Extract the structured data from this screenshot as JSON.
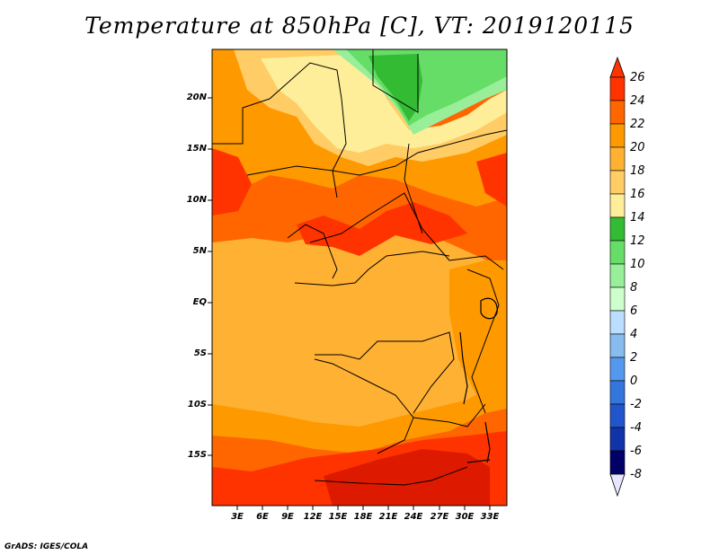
{
  "title": "Temperature at 850hPa [C], VT: 2019120115",
  "footer": "GrADS: IGES/COLA",
  "y_axis": {
    "labels": [
      "20N",
      "15N",
      "10N",
      "5N",
      "EQ",
      "5S",
      "10S",
      "15S"
    ]
  },
  "x_axis": {
    "labels": [
      "3E",
      "6E",
      "9E",
      "12E",
      "15E",
      "18E",
      "21E",
      "24E",
      "27E",
      "30E",
      "33E"
    ]
  },
  "colorbar": {
    "labels": [
      "26",
      "24",
      "22",
      "20",
      "18",
      "16",
      "14",
      "12",
      "10",
      "8",
      "6",
      "4",
      "2",
      "0",
      "-2",
      "-4",
      "-6",
      "-8"
    ],
    "colors": [
      "#ff3300",
      "#ff6600",
      "#ff9900",
      "#ffb133",
      "#ffcc66",
      "#ffee99",
      "#33bb33",
      "#66dd66",
      "#99ee99",
      "#ccffcc",
      "#bbddff",
      "#88bbee",
      "#5599ee",
      "#3377dd",
      "#2255cc",
      "#1133aa",
      "#000066"
    ]
  },
  "map": {
    "type": "filled-contour",
    "field": "Temperature at 850hPa",
    "units": "C",
    "lat_range": [
      -20,
      24
    ],
    "lon_range": [
      0,
      35
    ],
    "colors": {
      "deep_red": "#dd1a00",
      "red": "#ff3300",
      "red_orange": "#ff6600",
      "orange": "#ff9900",
      "light_orange": "#ffb133",
      "yellow": "#ffcc66",
      "pale_yellow": "#ffee99",
      "green": "#33bb33",
      "light_green": "#66dd66",
      "pale_green": "#99ee99"
    }
  }
}
